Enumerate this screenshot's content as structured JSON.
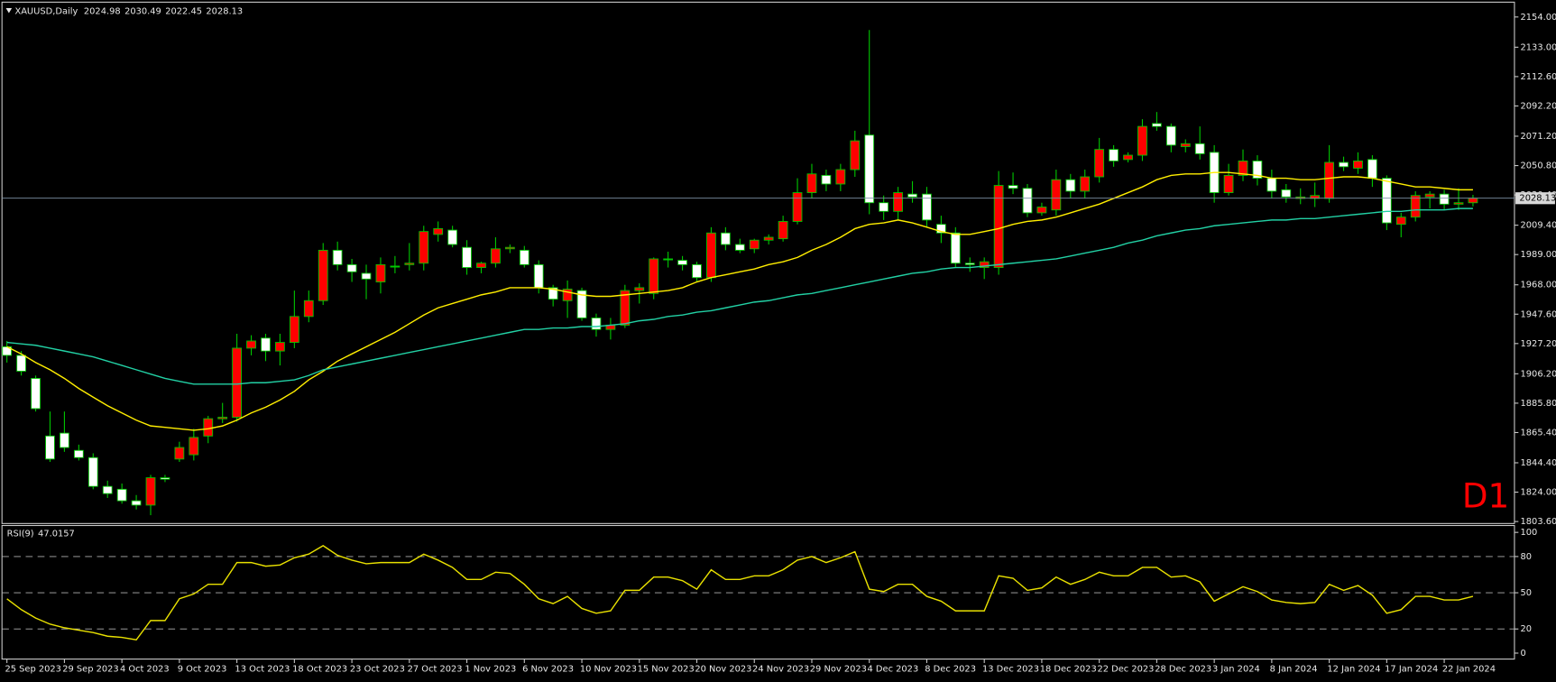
{
  "chart_data": [
    {
      "type": "candlestick",
      "title": "XAUUSD,Daily",
      "categories": [
        "25 Sep 2023",
        null,
        null,
        null,
        "29 Sep 2023",
        null,
        null,
        null,
        "4 Oct 2023",
        null,
        null,
        null,
        "9 Oct 2023",
        null,
        null,
        null,
        "13 Oct 2023",
        null,
        null,
        null,
        "18 Oct 2023",
        null,
        null,
        null,
        "23 Oct 2023",
        null,
        null,
        null,
        "27 Oct 2023",
        null,
        null,
        null,
        "1 Nov 2023",
        null,
        null,
        null,
        "6 Nov 2023",
        null,
        null,
        null,
        "10 Nov 2023",
        null,
        null,
        null,
        "15 Nov 2023",
        null,
        null,
        null,
        "20 Nov 2023",
        null,
        null,
        null,
        "24 Nov 2023",
        null,
        null,
        null,
        "29 Nov 2023",
        null,
        null,
        null,
        "4 Dec 2023",
        null,
        null,
        null,
        "8 Dec 2023",
        null,
        null,
        null,
        "13 Dec 2023",
        null,
        null,
        null,
        "18 Dec 2023",
        null,
        null,
        null,
        "22 Dec 2023",
        null,
        null,
        null,
        "28 Dec 2023",
        null,
        null,
        null,
        "3 Jan 2024",
        null,
        null,
        null,
        "8 Jan 2024",
        null,
        null,
        null,
        "12 Jan 2024",
        null,
        null,
        null,
        "17 Jan 2024",
        null,
        null,
        null,
        "22 Jan 2024",
        null,
        null
      ],
      "open": [
        1925,
        1919,
        1903,
        1863,
        1865,
        1853,
        1848,
        1828,
        1826,
        1818,
        1815,
        1834,
        1847,
        1850,
        1863,
        1875,
        1876,
        1924,
        1931,
        1922,
        1928,
        1946,
        1957,
        1992,
        1982,
        1976,
        1970,
        1981,
        1982,
        1983,
        2003,
        2006,
        1994,
        1980,
        1983,
        1993,
        1992,
        1982,
        1966,
        1957,
        1964,
        1945,
        1937,
        1940,
        1964,
        1962,
        1986,
        1985,
        1982,
        1973,
        2004,
        1996,
        1993,
        1999,
        2000,
        2012,
        2032,
        2044,
        2038,
        2048,
        2072,
        2025,
        2019,
        2031,
        2031,
        2010,
        2004,
        1983,
        1980,
        1980,
        2037,
        2035,
        2018,
        2020,
        2041,
        2033,
        2043,
        2062,
        2055,
        2058,
        2080,
        2078,
        2064,
        2066,
        2060,
        2032,
        2044,
        2054,
        2042,
        2034,
        2028,
        2028,
        2028,
        2053,
        2049,
        2055,
        2042,
        2010,
        2015,
        2029,
        2031,
        2024,
        2024.98
      ],
      "high": [
        1929,
        1922,
        1905,
        1880,
        1880,
        1857,
        1851,
        1832,
        1830,
        1822,
        1836,
        1836,
        1859,
        1868,
        1877,
        1886,
        1934,
        1933,
        1934,
        1934,
        1964,
        1964,
        1997,
        1998,
        1986,
        1982,
        1987,
        1988,
        1997,
        2009,
        2012,
        2009,
        1999,
        1984,
        2001,
        1996,
        1995,
        1985,
        1968,
        1971,
        1966,
        1948,
        1945,
        1968,
        1969,
        1987,
        1991,
        1988,
        1984,
        2008,
        2008,
        2000,
        2000,
        2003,
        2016,
        2042,
        2052,
        2048,
        2052,
        2075,
        2145,
        2030,
        2036,
        2040,
        2036,
        2016,
        2008,
        1987,
        1987,
        2047,
        2046,
        2038,
        2025,
        2048,
        2045,
        2048,
        2070,
        2065,
        2060,
        2083,
        2088,
        2080,
        2069,
        2078,
        2065,
        2052,
        2062,
        2058,
        2048,
        2038,
        2035,
        2039,
        2065,
        2057,
        2060,
        2058,
        2044,
        2018,
        2033,
        2033,
        2034,
        2035,
        2030.49
      ],
      "low": [
        1914,
        1905,
        1880,
        1845,
        1852,
        1846,
        1826,
        1820,
        1816,
        1812,
        1808,
        1831,
        1845,
        1846,
        1858,
        1872,
        1873,
        1919,
        1915,
        1912,
        1924,
        1942,
        1954,
        1978,
        1970,
        1958,
        1962,
        1976,
        1978,
        1978,
        1998,
        1994,
        1975,
        1976,
        1980,
        1990,
        1980,
        1962,
        1953,
        1945,
        1943,
        1932,
        1930,
        1938,
        1955,
        1958,
        1980,
        1978,
        1970,
        1970,
        1992,
        1990,
        1990,
        1996,
        1998,
        2010,
        2028,
        2033,
        2033,
        2043,
        2017,
        2013,
        2013,
        2025,
        2008,
        1997,
        1980,
        1977,
        1972,
        1975,
        2031,
        2015,
        2016,
        2016,
        2028,
        2028,
        2039,
        2050,
        2053,
        2054,
        2075,
        2060,
        2060,
        2055,
        2025,
        2030,
        2040,
        2037,
        2028,
        2025,
        2024,
        2022,
        2025,
        2047,
        2045,
        2036,
        2006,
        2001,
        2012,
        2021,
        2020,
        2020,
        2022.45
      ],
      "close": [
        1919,
        1908,
        1882,
        1847,
        1855,
        1848,
        1828,
        1823,
        1818,
        1815,
        1834,
        1833,
        1855,
        1862,
        1875,
        1876,
        1924,
        1929,
        1922,
        1928,
        1946,
        1957,
        1992,
        1982,
        1977,
        1972,
        1982,
        1981,
        1983,
        2005,
        2007,
        1996,
        1980,
        1983,
        1993,
        1994,
        1982,
        1966,
        1958,
        1965,
        1945,
        1937,
        1940,
        1964,
        1966,
        1986,
        1986,
        1982,
        1973,
        2004,
        1996,
        1992,
        1999,
        2001,
        2012,
        2032,
        2045,
        2038,
        2048,
        2068,
        2025,
        2019,
        2032,
        2029,
        2013,
        2004,
        1983,
        1982,
        1984,
        2037,
        2035,
        2018,
        2022,
        2041,
        2033,
        2043,
        2062,
        2054,
        2058,
        2078,
        2078,
        2065,
        2066,
        2059,
        2032,
        2044,
        2054,
        2042,
        2033,
        2029,
        2029,
        2030,
        2053,
        2050,
        2054,
        2042,
        2011,
        2015,
        2030,
        2031,
        2024,
        2025,
        2028.13
      ],
      "bull_color": "#ff0000",
      "bear_color": "#ffffff",
      "wick_color": "#00c800",
      "series": [
        {
          "color": "#ffee00",
          "values": [
            1925,
            1920,
            1914,
            1909,
            1903,
            1896,
            1890,
            1884,
            1879,
            1874,
            1870,
            1869,
            1868,
            1867,
            1868,
            1870,
            1874,
            1879,
            1883,
            1888,
            1894,
            1902,
            1908,
            1915,
            1920,
            1925,
            1930,
            1935,
            1941,
            1947,
            1952,
            1955,
            1958,
            1961,
            1963,
            1966,
            1966,
            1966,
            1965,
            1963,
            1961,
            1960,
            1960,
            1961,
            1962,
            1963,
            1964,
            1966,
            1970,
            1973,
            1975,
            1977,
            1979,
            1982,
            1984,
            1987,
            1992,
            1996,
            2001,
            2007,
            2010,
            2011,
            2013,
            2011,
            2008,
            2005,
            2003,
            2003,
            2005,
            2007,
            2010,
            2012,
            2013,
            2015,
            2018,
            2021,
            2024,
            2028,
            2032,
            2036,
            2041,
            2044,
            2045,
            2045,
            2046,
            2046,
            2045,
            2044,
            2042,
            2042,
            2041,
            2041,
            2042,
            2043,
            2043,
            2042,
            2040,
            2038,
            2036,
            2036,
            2035,
            2034,
            2034
          ]
        },
        {
          "color": "#22d0a4",
          "values": [
            1928,
            1927,
            1926,
            1924,
            1922,
            1920,
            1918,
            1915,
            1912,
            1909,
            1906,
            1903,
            1901,
            1899,
            1899,
            1899,
            1899,
            1900,
            1900,
            1901,
            1902,
            1905,
            1909,
            1911,
            1913,
            1915,
            1917,
            1919,
            1921,
            1923,
            1925,
            1927,
            1929,
            1931,
            1933,
            1935,
            1937,
            1937,
            1938,
            1938,
            1939,
            1939,
            1940,
            1941,
            1943,
            1944,
            1946,
            1947,
            1949,
            1950,
            1952,
            1954,
            1956,
            1957,
            1959,
            1961,
            1962,
            1964,
            1966,
            1968,
            1970,
            1972,
            1974,
            1976,
            1977,
            1979,
            1980,
            1980,
            1981,
            1982,
            1983,
            1984,
            1985,
            1986,
            1988,
            1990,
            1992,
            1994,
            1997,
            1999,
            2002,
            2004,
            2006,
            2007,
            2009,
            2010,
            2011,
            2012,
            2013,
            2013,
            2014,
            2014,
            2015,
            2016,
            2017,
            2018,
            2019,
            2019,
            2020,
            2020,
            2020,
            2021,
            2021
          ]
        }
      ],
      "price_line_color": "#7f93a8",
      "ylim": [
        1802.9,
        2163.6
      ],
      "yticks": [
        {
          "value": 2154,
          "label": "2154.00"
        },
        {
          "value": 2133,
          "label": "2133.00"
        },
        {
          "value": 2112.6,
          "label": "2112.60"
        },
        {
          "value": 2092.2,
          "label": "2092.20"
        },
        {
          "value": 2071.2,
          "label": "2071.20"
        },
        {
          "value": 2050.8,
          "label": "2050.80"
        },
        {
          "value": 2030.4,
          "label": "2030.40"
        },
        {
          "value": 2009.4,
          "label": "2009.40"
        },
        {
          "value": 1989,
          "label": "1989.00"
        },
        {
          "value": 1968,
          "label": "1968.00"
        },
        {
          "value": 1947.6,
          "label": "1947.60"
        },
        {
          "value": 1927.2,
          "label": "1927.20"
        },
        {
          "value": 1906.2,
          "label": "1906.20"
        },
        {
          "value": 1885.8,
          "label": "1885.80"
        },
        {
          "value": 1865.4,
          "label": "1865.40"
        },
        {
          "value": 1844.4,
          "label": "1844.40"
        },
        {
          "value": 1824,
          "label": "1824.00"
        },
        {
          "value": 1803.6,
          "label": "1803.60"
        }
      ],
      "grid": false,
      "timeframe_label": "D1",
      "timeframe_color": "#ff0000"
    },
    {
      "type": "line",
      "title": "RSI(9)",
      "series": [
        {
          "color": "#e8e000",
          "values": [
            45,
            36,
            29,
            24,
            21,
            19,
            17,
            14,
            13,
            11,
            27,
            27,
            45,
            49,
            57,
            57,
            75,
            75,
            72,
            73,
            79,
            82,
            89,
            81,
            77,
            74,
            75,
            75,
            75,
            82,
            77,
            71,
            61,
            61,
            67,
            66,
            57,
            45,
            41,
            47,
            37,
            33,
            35,
            52,
            52,
            63,
            63,
            60,
            53,
            69,
            61,
            61,
            64,
            64,
            69,
            77,
            80,
            75,
            79,
            84,
            53,
            51,
            57,
            57,
            47,
            43,
            35,
            35,
            35,
            64,
            62,
            52,
            54,
            63,
            57,
            61,
            67,
            64,
            64,
            71,
            71,
            63,
            64,
            59,
            43,
            49,
            55,
            51,
            44,
            42,
            41,
            42,
            57,
            52,
            56,
            48,
            33,
            36,
            47,
            47,
            44,
            44,
            47.0157
          ]
        }
      ],
      "ylim": [
        -4.1,
        105.7
      ],
      "yticks": [
        0,
        20,
        50,
        80,
        100
      ],
      "levels": [
        20,
        50,
        80
      ]
    }
  ]
}
